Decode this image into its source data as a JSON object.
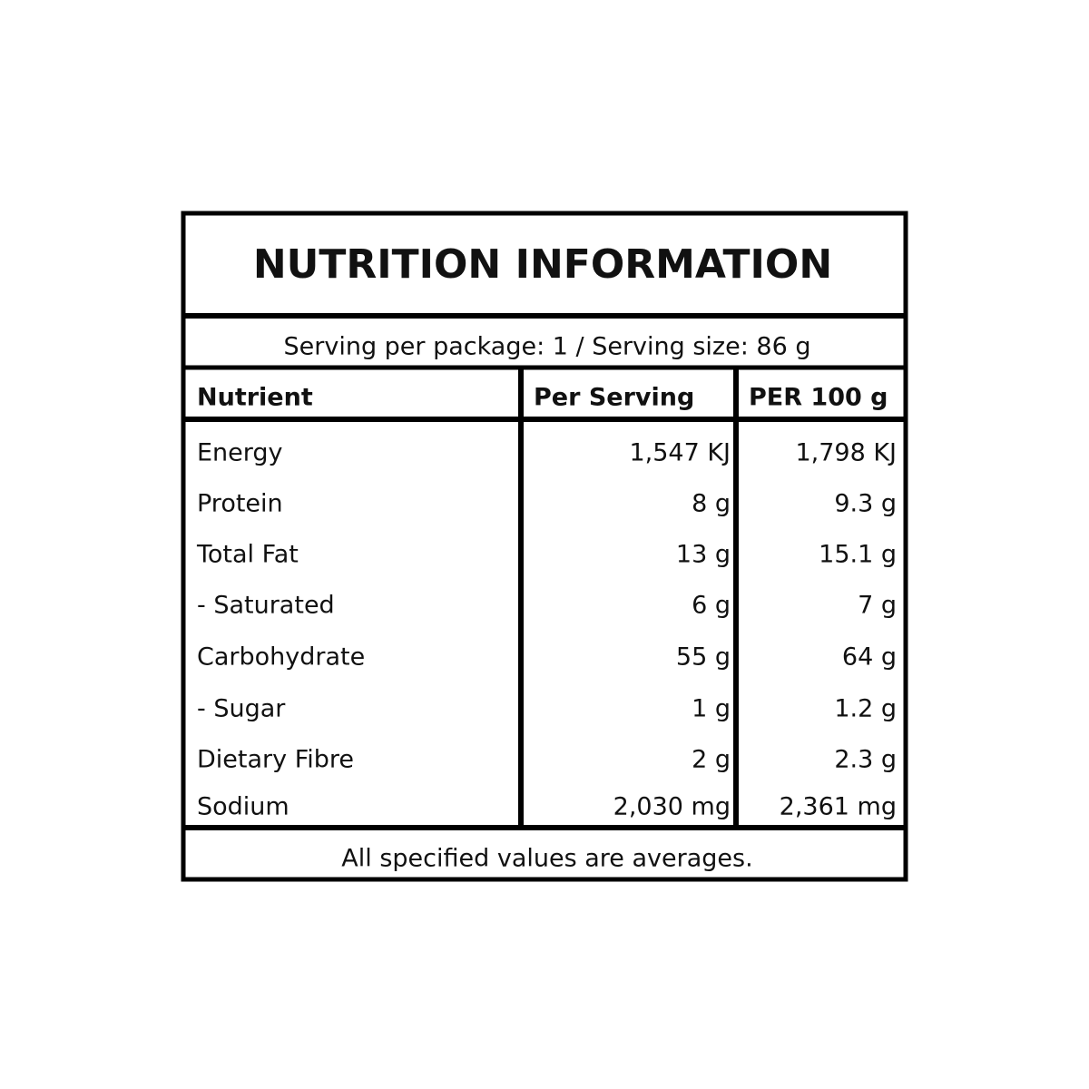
{
  "header": {
    "title": "NUTRITION INFORMATION",
    "serving": "Serving per package: 1 / Serving size: 86 g"
  },
  "table": {
    "columns": [
      "Nutrient",
      "Per Serving",
      "PER 100 g"
    ],
    "rows": [
      [
        "Energy",
        "1,547 KJ",
        "1,798 KJ"
      ],
      [
        "Protein",
        "8 g",
        "9.3 g"
      ],
      [
        "Total Fat",
        "13 g",
        "15.1 g"
      ],
      [
        "- Saturated",
        "6 g",
        "7 g"
      ],
      [
        "Carbohydrate",
        "55 g",
        "64 g"
      ],
      [
        "- Sugar",
        "1 g",
        "1.2 g"
      ],
      [
        "Dietary Fibre",
        "2 g",
        "2.3 g"
      ],
      [
        "Sodium",
        "2,030 mg",
        "2,361 mg"
      ]
    ]
  },
  "footer": "All specified values are averages."
}
